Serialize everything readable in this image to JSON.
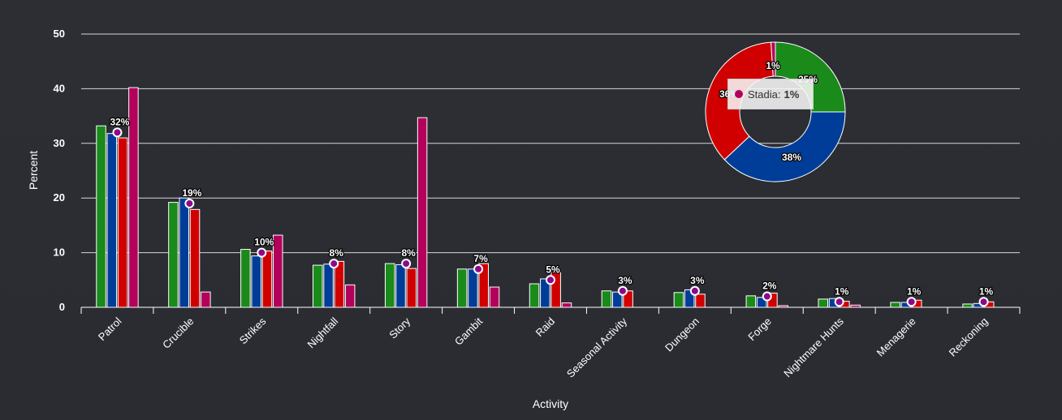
{
  "chart_data": [
    {
      "type": "bar",
      "title": "",
      "xlabel": "Activity",
      "ylabel": "Percent",
      "ylim": [
        0,
        50
      ],
      "yticks": [
        0,
        10,
        20,
        30,
        40,
        50
      ],
      "grid": true,
      "categories": [
        "Patrol",
        "Crucible",
        "Strikes",
        "Nightfall",
        "Story",
        "Gambit",
        "Raid",
        "Seasonal Activity",
        "Dungeon",
        "Forge",
        "Nightmare Hunts",
        "Menagerie",
        "Reckoning"
      ],
      "series": [
        {
          "color": "#1a8a1a",
          "values": [
            33.2,
            19.2,
            10.6,
            7.7,
            8.0,
            7.0,
            4.3,
            3.0,
            2.7,
            2.1,
            1.5,
            0.9,
            0.6
          ]
        },
        {
          "color": "#003d99",
          "values": [
            31.8,
            20.0,
            9.4,
            7.9,
            7.8,
            7.0,
            5.2,
            2.8,
            3.2,
            1.8,
            1.6,
            0.9,
            0.7
          ]
        },
        {
          "color": "#d10000",
          "values": [
            31.0,
            17.9,
            10.3,
            8.4,
            7.1,
            8.0,
            6.4,
            3.0,
            2.4,
            2.6,
            1.1,
            1.3,
            1.0
          ]
        },
        {
          "color": "#b3005a",
          "values": [
            40.2,
            2.8,
            13.2,
            4.1,
            34.7,
            3.7,
            0.8,
            0.0,
            0.0,
            0.3,
            0.4,
            0.0,
            0.0
          ]
        }
      ],
      "average": {
        "color": "#ffffff",
        "marker_color": "#8a0a8a",
        "values": [
          32,
          19,
          10,
          8,
          8,
          7,
          5,
          3,
          3,
          2,
          1,
          1,
          1
        ],
        "labels": [
          "32%",
          "19%",
          "10%",
          "8%",
          "8%",
          "7%",
          "5%",
          "3%",
          "3%",
          "2%",
          "1%",
          "1%",
          "1%"
        ]
      }
    },
    {
      "type": "pie",
      "slices": [
        {
          "value": 25,
          "label": "25%",
          "color": "#1a8a1a"
        },
        {
          "value": 38,
          "label": "38%",
          "color": "#003d99"
        },
        {
          "value": 36,
          "label": "36%",
          "color": "#d10000"
        },
        {
          "value": 1,
          "label": "1%",
          "color": "#b3005a"
        }
      ],
      "tooltip": {
        "name": "Stadia",
        "separator": ":",
        "value": "1%",
        "color": "#b3005a"
      }
    }
  ]
}
